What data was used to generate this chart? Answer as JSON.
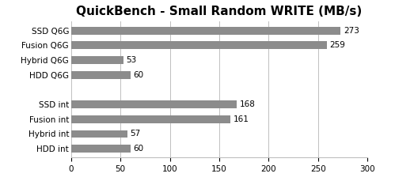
{
  "title": "QuickBench - Small Random WRITE (MB/s)",
  "categories": [
    "SSD Q6G",
    "Fusion Q6G",
    "Hybrid Q6G",
    "HDD Q6G",
    "",
    "SSD int",
    "Fusion int",
    "Hybrid int",
    "HDD int"
  ],
  "values": [
    273,
    259,
    53,
    60,
    0,
    168,
    161,
    57,
    60
  ],
  "bar_color": "#8c8c8c",
  "xlim": [
    0,
    300
  ],
  "xticks": [
    0,
    50,
    100,
    150,
    200,
    250,
    300
  ],
  "title_fontsize": 11,
  "label_fontsize": 7.5,
  "value_fontsize": 7.5,
  "bar_height": 0.52,
  "background_color": "#ffffff",
  "grid_color": "#c0c0c0"
}
